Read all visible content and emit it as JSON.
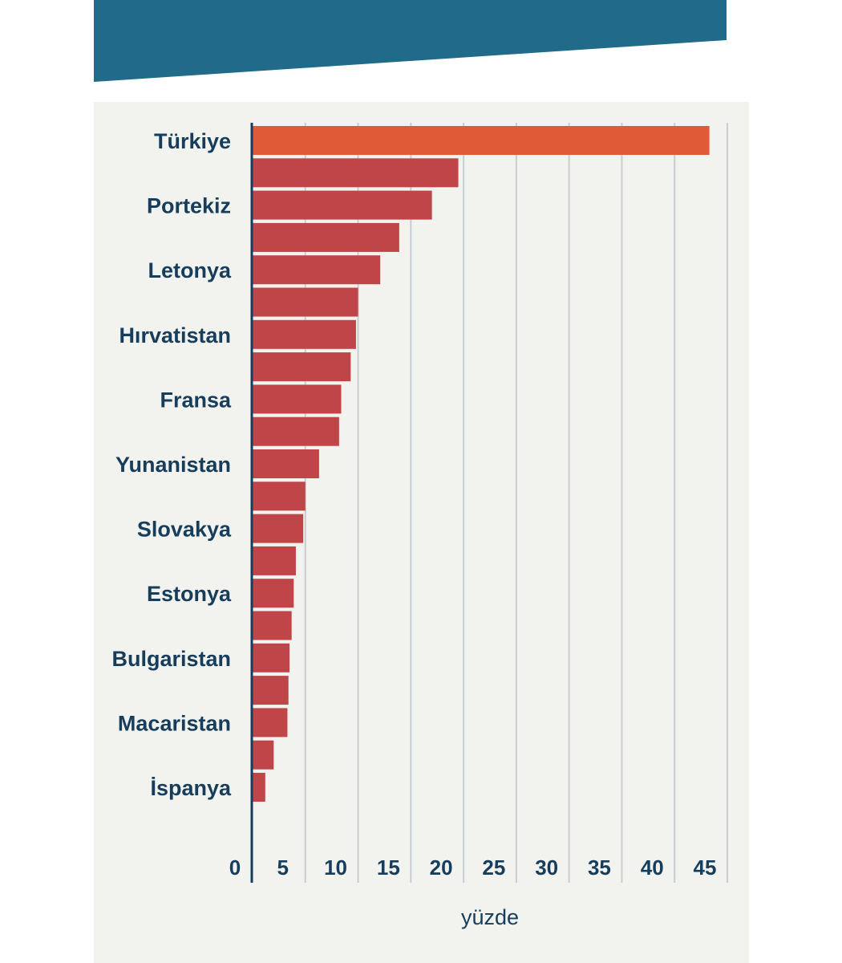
{
  "colors": {
    "banner": "#216a8a",
    "panel_background": "#f2f2ef",
    "highlight_bar": "#e05a38",
    "bar": "#bf4549",
    "gridline": "#c7ced2",
    "axis": "#163e5c",
    "text": "#163e5c"
  },
  "chart_data": {
    "type": "bar",
    "orientation": "horizontal",
    "title": "",
    "xlabel": "yüzde",
    "ylabel": "",
    "xlim": [
      0,
      45
    ],
    "x_ticks": [
      0,
      5,
      10,
      15,
      20,
      25,
      30,
      35,
      40,
      45
    ],
    "grid": true,
    "labeled_categories": [
      "Türkiye",
      "Portekiz",
      "Letonya",
      "Hırvatistan",
      "Fransa",
      "Yunanistan",
      "Slovakya",
      "Estonya",
      "Bulgaristan",
      "Macaristan",
      "İspanya"
    ],
    "values": [
      43.3,
      19.5,
      17.0,
      13.9,
      12.1,
      10.0,
      9.8,
      9.3,
      8.4,
      8.2,
      6.3,
      5.0,
      4.8,
      4.1,
      3.9,
      3.7,
      3.5,
      3.4,
      3.3,
      2.0,
      1.2
    ],
    "highlighted_index": 0
  }
}
